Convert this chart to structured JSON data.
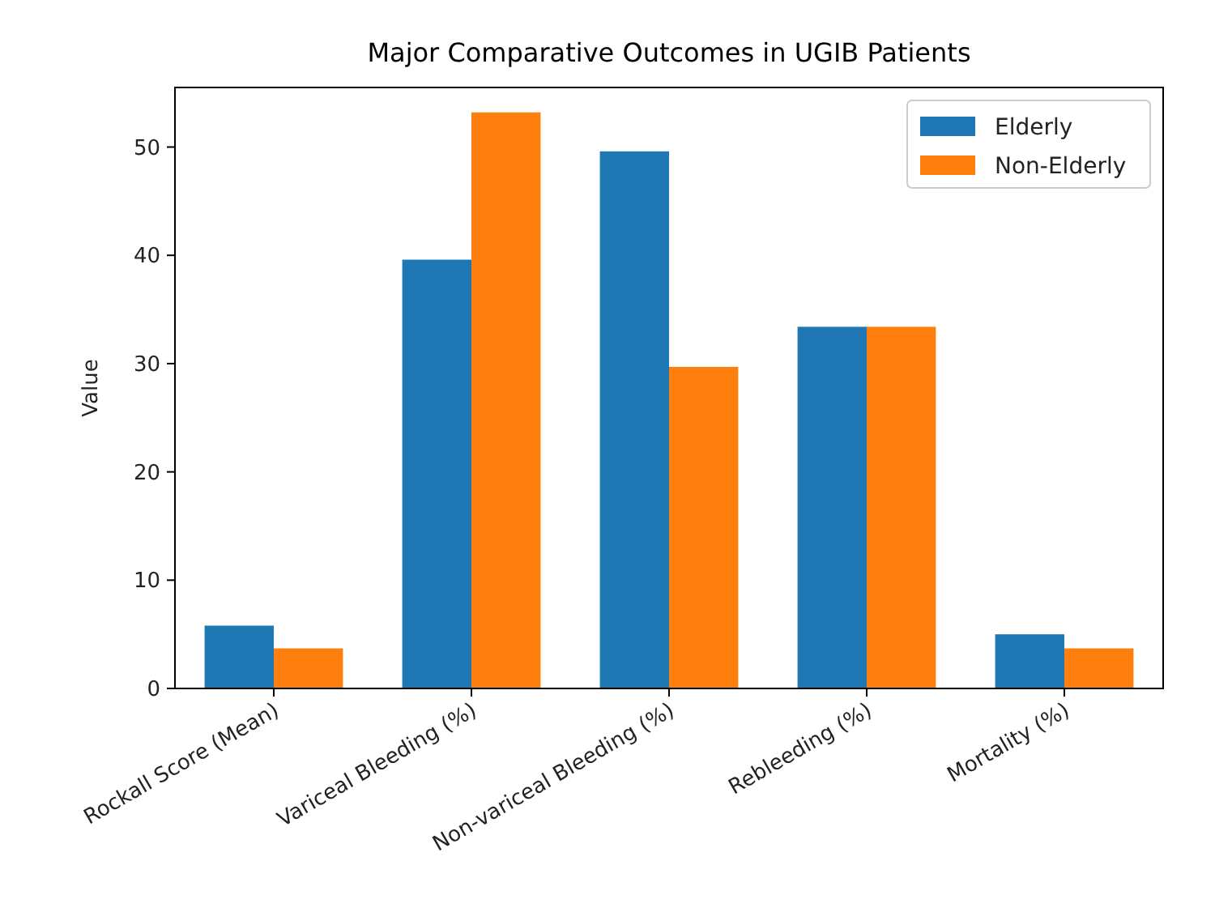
{
  "chart_data": {
    "type": "bar",
    "title": "Major Comparative Outcomes in UGIB Patients",
    "ylabel": "Value",
    "categories": [
      "Rockall Score (Mean)",
      "Variceal Bleeding (%)",
      "Non-variceal Bleeding (%)",
      "Rebleeding (%)",
      "Mortality (%)"
    ],
    "series": [
      {
        "name": "Elderly",
        "color": "#1f77b4",
        "values": [
          5.8,
          39.6,
          49.6,
          33.4,
          5.0
        ]
      },
      {
        "name": "Non-Elderly",
        "color": "#ff7f0e",
        "values": [
          3.7,
          53.2,
          29.7,
          33.4,
          3.7
        ]
      }
    ],
    "ylim": [
      0,
      55.5
    ],
    "yticks": [
      0,
      10,
      20,
      30,
      40,
      50
    ],
    "legend": "top right"
  }
}
